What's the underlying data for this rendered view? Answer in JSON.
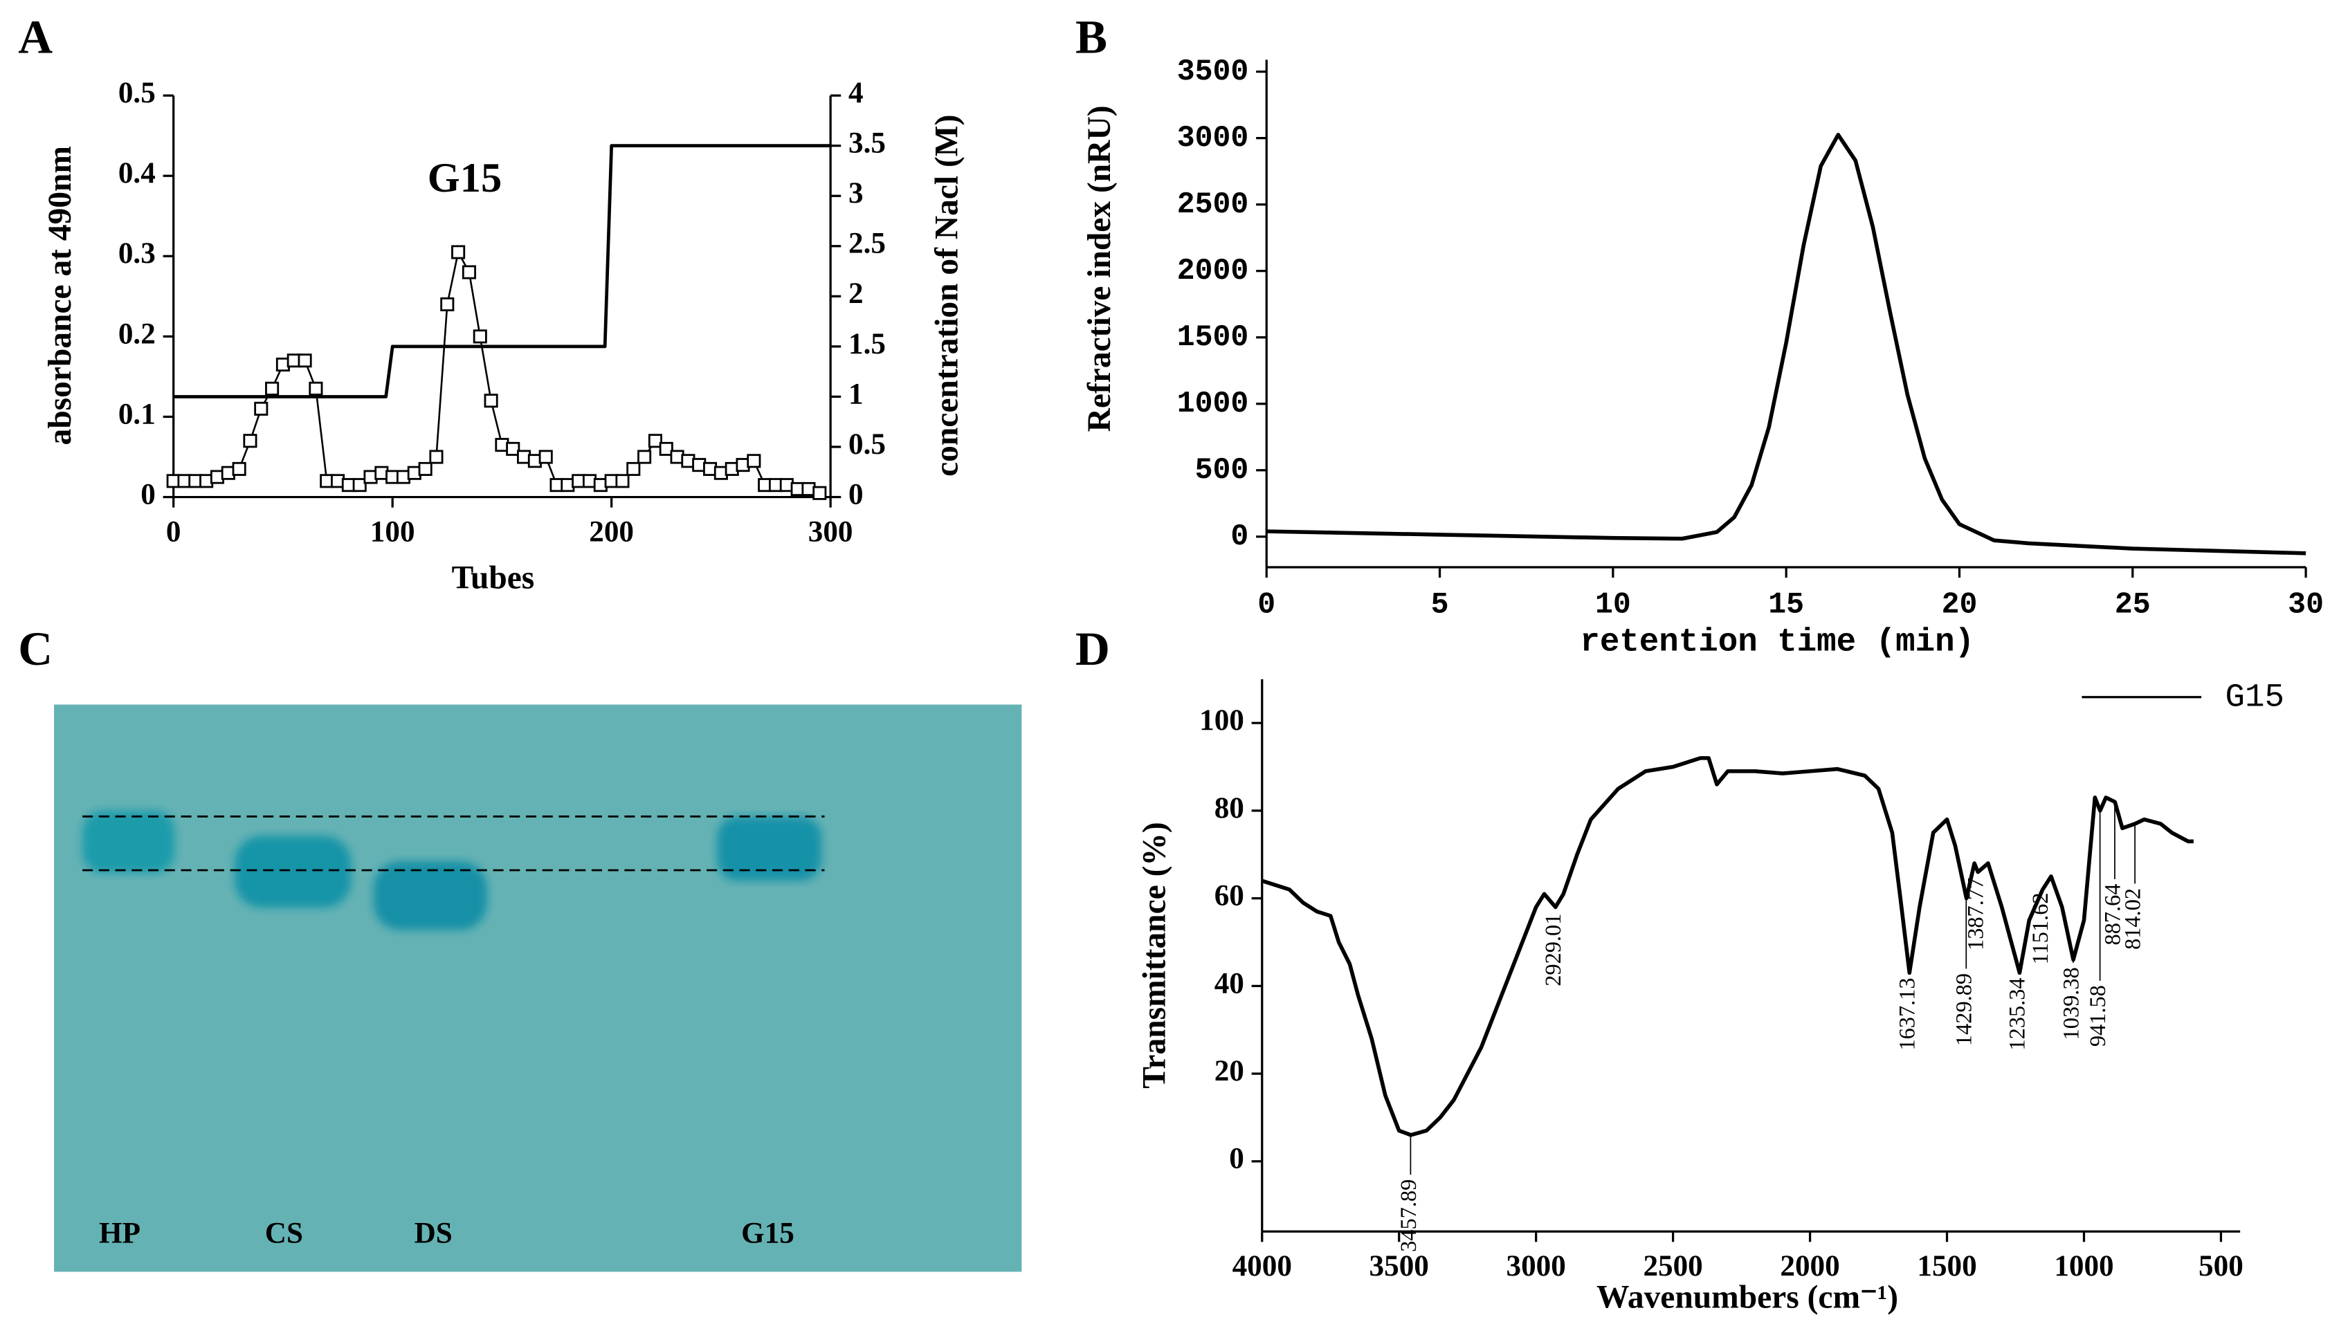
{
  "chart_data": [
    {
      "panel": "A",
      "type": "line",
      "xlabel": "Tubes",
      "ylabel": "absorbance at 490nm",
      "y2label": "concentration of Nacl (M)",
      "annotations": [
        "G15"
      ],
      "xlim": [
        0,
        300
      ],
      "xticks": [
        0,
        100,
        200,
        300
      ],
      "ylim": [
        0,
        0.5
      ],
      "yticks": [
        0,
        0.1,
        0.2,
        0.3,
        0.4,
        0.5
      ],
      "y2lim": [
        0,
        4
      ],
      "y2ticks": [
        0,
        0.5,
        1,
        1.5,
        2,
        2.5,
        3,
        3.5,
        4
      ],
      "series": [
        {
          "color": "#000000",
          "marker": "square",
          "x": [
            0,
            5,
            10,
            15,
            20,
            25,
            30,
            35,
            40,
            45,
            50,
            55,
            60,
            65,
            70,
            75,
            80,
            85,
            90,
            95,
            100,
            105,
            110,
            115,
            120,
            125,
            130,
            135,
            140,
            145,
            150,
            155,
            160,
            165,
            170,
            175,
            180,
            185,
            190,
            195,
            200,
            205,
            210,
            215,
            220,
            225,
            230,
            235,
            240,
            245,
            250,
            255,
            260,
            265,
            270,
            275,
            280,
            285,
            290,
            295
          ],
          "values": [
            0.02,
            0.02,
            0.02,
            0.02,
            0.025,
            0.03,
            0.035,
            0.07,
            0.11,
            0.135,
            0.165,
            0.17,
            0.17,
            0.135,
            0.02,
            0.02,
            0.015,
            0.015,
            0.025,
            0.03,
            0.025,
            0.025,
            0.03,
            0.035,
            0.05,
            0.24,
            0.305,
            0.28,
            0.2,
            0.12,
            0.065,
            0.06,
            0.05,
            0.045,
            0.05,
            0.015,
            0.015,
            0.02,
            0.02,
            0.015,
            0.02,
            0.02,
            0.035,
            0.05,
            0.07,
            0.06,
            0.05,
            0.045,
            0.04,
            0.035,
            0.03,
            0.035,
            0.04,
            0.045,
            0.015,
            0.015,
            0.015,
            0.01,
            0.01,
            0.005
          ]
        },
        {
          "color": "#000000",
          "axis": "y2",
          "x": [
            0,
            97,
            100,
            197,
            200,
            300
          ],
          "values": [
            1,
            1,
            1.5,
            1.5,
            3.5,
            3.5
          ]
        }
      ]
    },
    {
      "panel": "B",
      "type": "line",
      "xlabel": "retention time (min)",
      "ylabel": "Refractive index (nRU)",
      "xlim": [
        0,
        30
      ],
      "xticks": [
        0,
        5,
        10,
        15,
        20,
        25,
        30
      ],
      "ylim": [
        -230,
        3590
      ],
      "yticks": [
        0,
        500,
        1000,
        1500,
        2000,
        2500,
        3000,
        3500
      ],
      "series": [
        {
          "color": "#000000",
          "x": [
            0,
            5,
            10,
            12,
            13,
            13.5,
            14,
            14.5,
            15,
            15.5,
            16,
            16.5,
            17,
            17.5,
            18,
            18.5,
            19,
            19.5,
            20,
            21,
            22,
            25,
            30
          ],
          "values": [
            40,
            15,
            -10,
            -15,
            35,
            146,
            388,
            823,
            1460,
            2190,
            2790,
            3025,
            2831,
            2333,
            1688,
            1069,
            589,
            278,
            94,
            -28,
            -50,
            -90,
            -125
          ]
        }
      ]
    },
    {
      "panel": "D",
      "type": "line",
      "xlabel": "Wavenumbers (cm⁻¹)",
      "ylabel": "Transmittance (%)",
      "legend": "upper right",
      "xlim": [
        4000,
        430
      ],
      "xticks": [
        4000,
        3500,
        3000,
        2500,
        2000,
        1500,
        1000,
        500
      ],
      "ylim": [
        -16,
        110
      ],
      "yticks": [
        0,
        20,
        40,
        60,
        80,
        100
      ],
      "peaks": [
        3457.89,
        2929.01,
        1637.13,
        1429.89,
        1387.77,
        1235.34,
        1151.62,
        1039.38,
        941.58,
        887.64,
        814.02
      ],
      "series": [
        {
          "name": "G15",
          "color": "#000000",
          "x": [
            4000,
            3900,
            3850,
            3800,
            3750,
            3720,
            3680,
            3650,
            3600,
            3550,
            3500,
            3457,
            3400,
            3350,
            3300,
            3200,
            3100,
            3000,
            2970,
            2929,
            2900,
            2850,
            2800,
            2700,
            2600,
            2500,
            2400,
            2370,
            2340,
            2300,
            2200,
            2100,
            2000,
            1900,
            1800,
            1750,
            1700,
            1670,
            1637,
            1600,
            1550,
            1500,
            1470,
            1429,
            1400,
            1387,
            1350,
            1300,
            1235,
            1200,
            1151,
            1120,
            1080,
            1039,
            1000,
            960,
            941,
            920,
            887,
            860,
            814,
            780,
            720,
            680,
            620,
            600
          ],
          "values": [
            64,
            62,
            59,
            57,
            56,
            50,
            45,
            38,
            28,
            15,
            7,
            6,
            7,
            10,
            14,
            26,
            42,
            58,
            61,
            58,
            61,
            70,
            78,
            85,
            89,
            90,
            92,
            92,
            86,
            89,
            89,
            88.5,
            89,
            89.5,
            88,
            85,
            75,
            60,
            43,
            58,
            75,
            78,
            72,
            60,
            68,
            66,
            68,
            58,
            43,
            55,
            62,
            65,
            58,
            46,
            55,
            83,
            80,
            83,
            82,
            76,
            77,
            78,
            77,
            75,
            73,
            73
          ]
        }
      ]
    }
  ],
  "gel": {
    "panel": "C",
    "lanes": [
      "HP",
      "CS",
      "DS",
      "G15"
    ]
  }
}
